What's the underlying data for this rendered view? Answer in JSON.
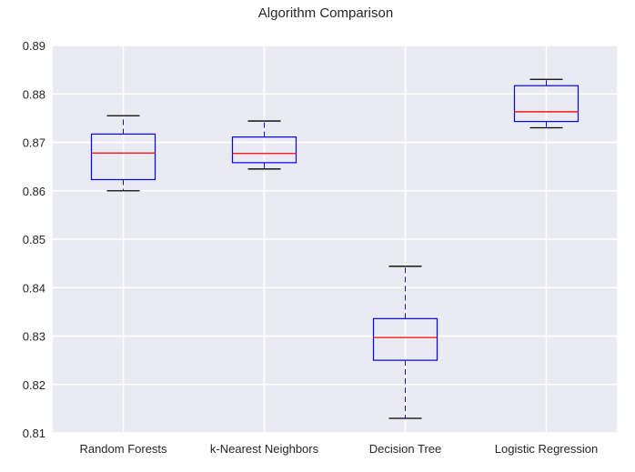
{
  "chart_data": {
    "type": "box",
    "title": "Algorithm Comparison",
    "xlabel": "",
    "ylabel": "",
    "ylim": [
      0.81,
      0.89
    ],
    "yticks": [
      "0.81",
      "0.82",
      "0.83",
      "0.84",
      "0.85",
      "0.86",
      "0.87",
      "0.88",
      "0.89"
    ],
    "grid": true,
    "categories": [
      "Random Forests",
      "k-Nearest Neighbors",
      "Decision Tree",
      "Logistic Regression"
    ],
    "boxes": [
      {
        "whisker_low": 0.86,
        "q1": 0.8623,
        "median": 0.8678,
        "q3": 0.8717,
        "whisker_high": 0.8755
      },
      {
        "whisker_low": 0.8645,
        "q1": 0.8658,
        "median": 0.8677,
        "q3": 0.8711,
        "whisker_high": 0.8744
      },
      {
        "whisker_low": 0.813,
        "q1": 0.825,
        "median": 0.8297,
        "q3": 0.8336,
        "whisker_high": 0.8444
      },
      {
        "whisker_low": 0.873,
        "q1": 0.8743,
        "median": 0.8763,
        "q3": 0.8817,
        "whisker_high": 0.883
      }
    ],
    "colors": {
      "background": "#eaeaf2",
      "grid": "#ffffff",
      "box": "#0000ff",
      "median": "#ff0000",
      "cap": "#000000"
    }
  }
}
